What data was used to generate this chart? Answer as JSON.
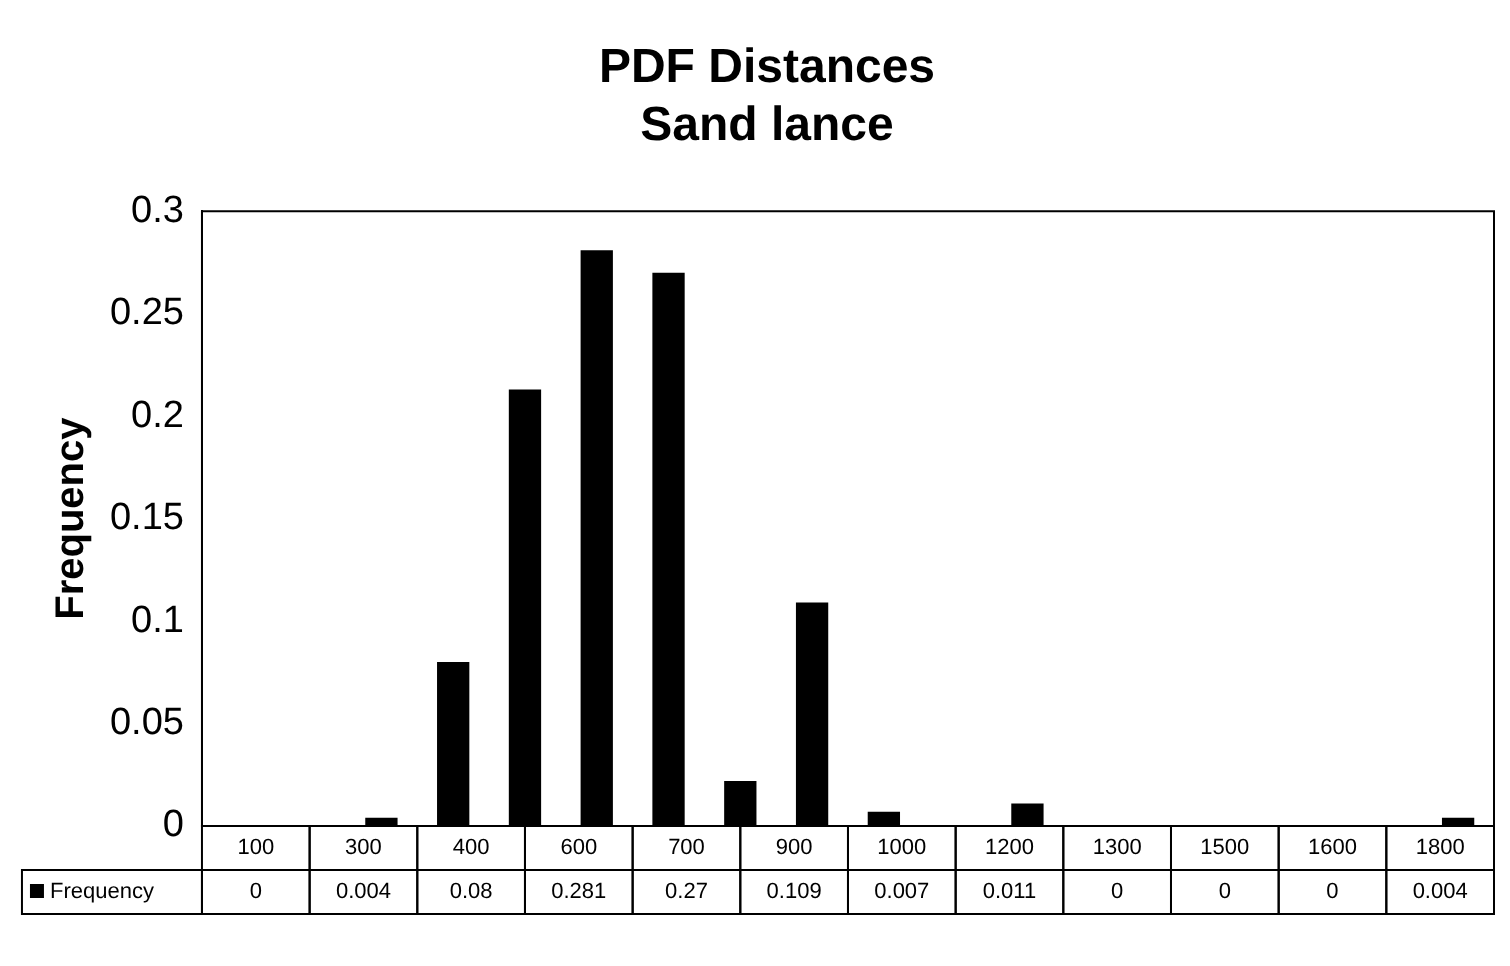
{
  "chart_data": {
    "type": "bar",
    "title": "PDF Distances\nSand lance",
    "ylabel": "Frequency",
    "categories": [
      "100",
      null,
      "300",
      "400",
      null,
      "600",
      "700",
      null,
      "900",
      "1000",
      null,
      "1200",
      "1300",
      null,
      "1500",
      "1600",
      null,
      "1800"
    ],
    "series": [
      {
        "name": "Frequency",
        "color": "#000000",
        "values": [
          0,
          0,
          0.004,
          0.08,
          0.213,
          0.281,
          0.27,
          0.022,
          0.109,
          0.007,
          0,
          0.011,
          0,
          0,
          0,
          0,
          0,
          0.004
        ],
        "value_labels": [
          "0",
          null,
          "0.004",
          "0.08",
          null,
          "0.281",
          "0.27",
          null,
          "0.109",
          "0.007",
          null,
          "0.011",
          "0",
          null,
          "0",
          "0",
          null,
          "0.004"
        ]
      }
    ],
    "ylim": [
      0,
      0.3
    ],
    "yticks": [
      0,
      0.05,
      0.1,
      0.15,
      0.2,
      0.25,
      0.3
    ],
    "grid": false,
    "legend": "bottom"
  }
}
